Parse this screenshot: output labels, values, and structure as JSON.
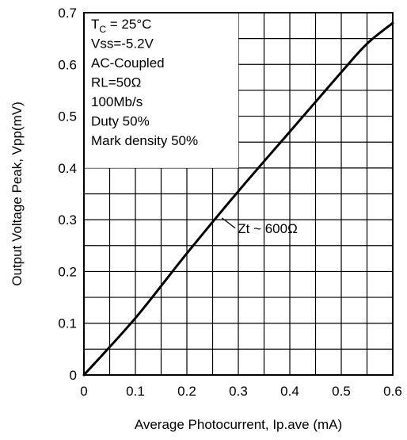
{
  "chart_data": {
    "type": "line",
    "xlabel": "Average Photocurrent, Ip.ave (mA)",
    "ylabel": "Output Voltage Peak, Vpp(mV)",
    "xlim": [
      0,
      0.6
    ],
    "ylim": [
      0,
      0.7
    ],
    "x_ticks": [
      "0",
      "0.1",
      "0.2",
      "0.3",
      "0.4",
      "0.5",
      "0.6"
    ],
    "y_ticks": [
      "0",
      "0.1",
      "0.2",
      "0.3",
      "0.4",
      "0.5",
      "0.6",
      "0.7"
    ],
    "grid": true,
    "grid_step_x": 0.05,
    "grid_step_y": 0.05,
    "conditions": {
      "tc_main": "T",
      "tc_sub": "C",
      "tc_rest": " = 25°C",
      "lines": [
        "Vss=-5.2V",
        "AC-Coupled",
        "RL=50Ω",
        "100Mb/s",
        "Duty 50%",
        "Mark density 50%"
      ]
    },
    "annotation": {
      "text": "Zt ~ 600Ω",
      "x": 0.265,
      "y": 0.305
    },
    "series": [
      {
        "x": [
          0,
          0.1,
          0.2,
          0.3,
          0.4,
          0.5,
          0.55,
          0.6
        ],
        "y": [
          0,
          0.11,
          0.235,
          0.355,
          0.47,
          0.585,
          0.64,
          0.68
        ]
      }
    ]
  }
}
